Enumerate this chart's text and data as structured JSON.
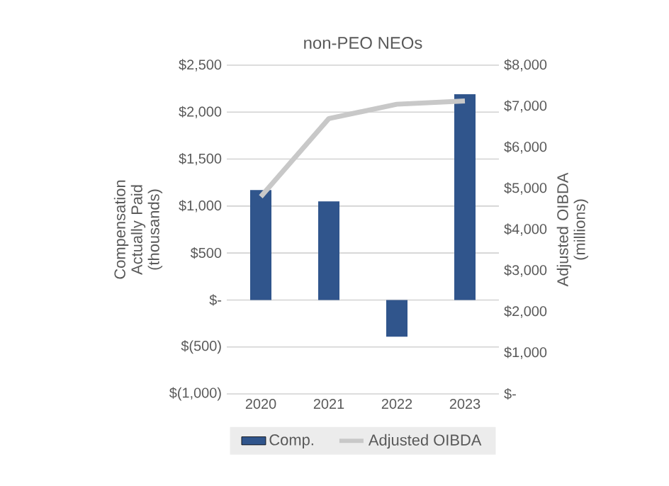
{
  "chart_data": {
    "type": "bar",
    "title": "non-PEO NEOs",
    "ylabel": "Compensation Actually Paid (thousands)",
    "y2label": "Adjusted OIBDA (millions)",
    "categories": [
      "2020",
      "2021",
      "2022",
      "2023"
    ],
    "series": [
      {
        "name": "Comp.",
        "color": "#30558c",
        "values": [
          1170,
          1050,
          -390,
          2190
        ]
      },
      {
        "name": "Adjusted OIBDA",
        "type": "line",
        "axis": "y2",
        "color": "#c8c8c8",
        "values": [
          4800,
          6700,
          7050,
          7130
        ]
      }
    ],
    "ylim": [
      -1000,
      2500
    ],
    "yticks": [
      {
        "value": -1000,
        "label": "$(1,000)"
      },
      {
        "value": -500,
        "label": "$(500)"
      },
      {
        "value": 0,
        "label": "$-"
      },
      {
        "value": 500,
        "label": "$500"
      },
      {
        "value": 1000,
        "label": "$1,000"
      },
      {
        "value": 1500,
        "label": "$1,500"
      },
      {
        "value": 2000,
        "label": "$2,000"
      },
      {
        "value": 2500,
        "label": "$2,500"
      }
    ],
    "y2lim": [
      0,
      8000
    ],
    "y2ticks": [
      {
        "value": 0,
        "label": "$-"
      },
      {
        "value": 1000,
        "label": "$1,000"
      },
      {
        "value": 2000,
        "label": "$2,000"
      },
      {
        "value": 3000,
        "label": "$3,000"
      },
      {
        "value": 4000,
        "label": "$4,000"
      },
      {
        "value": 5000,
        "label": "$5,000"
      },
      {
        "value": 6000,
        "label": "$6,000"
      },
      {
        "value": 7000,
        "label": "$7,000"
      },
      {
        "value": 8000,
        "label": "$8,000"
      }
    ],
    "grid": "y",
    "legend": "bottom"
  }
}
